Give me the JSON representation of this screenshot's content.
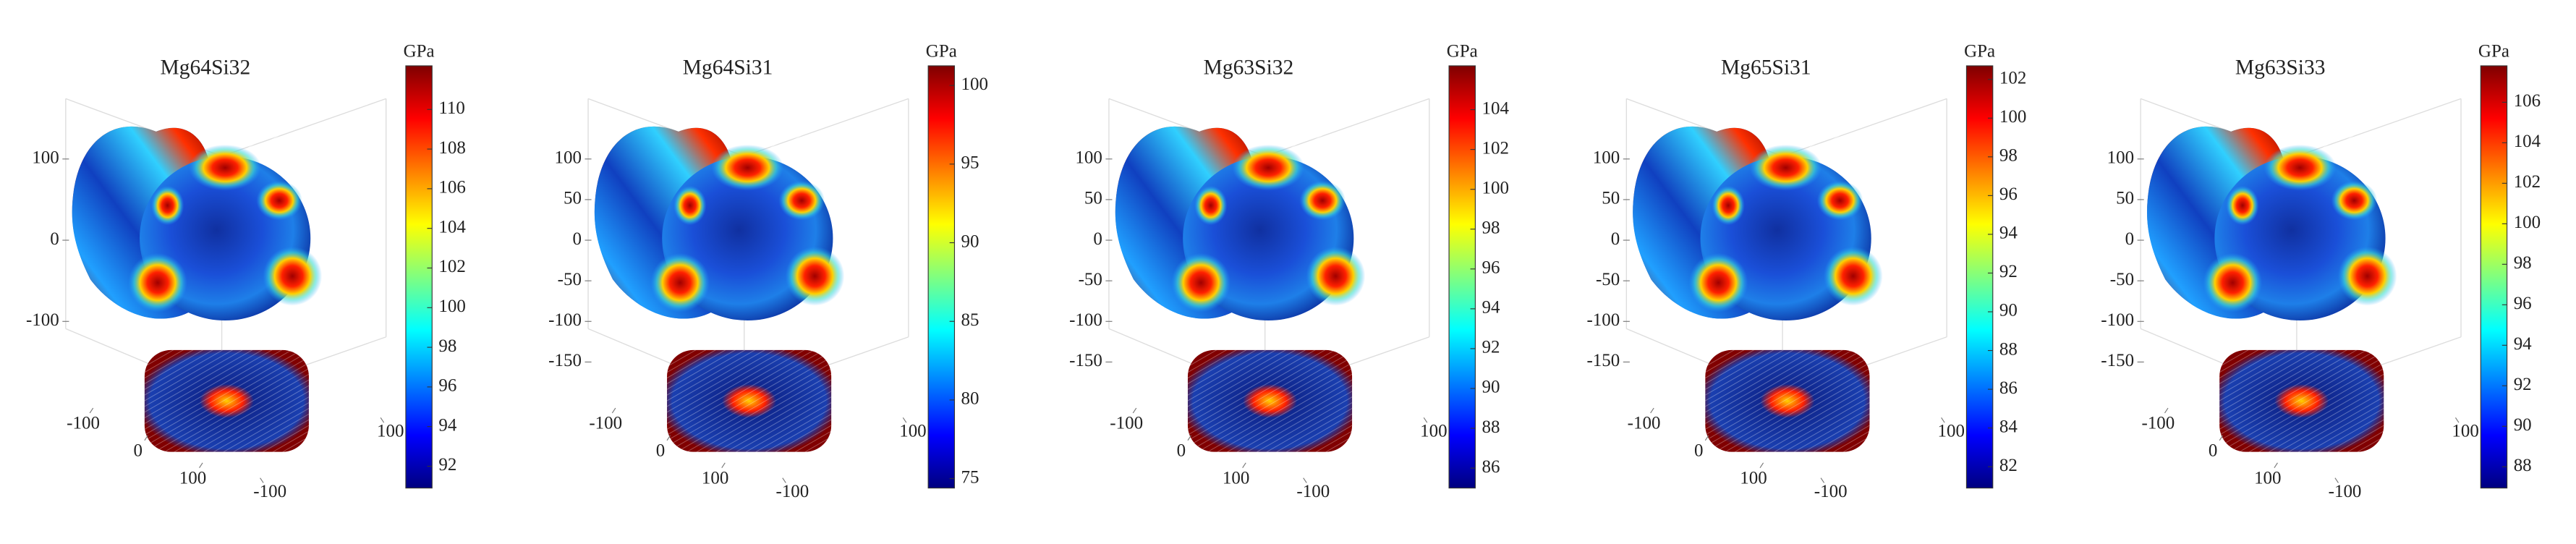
{
  "chart_data": [
    {
      "type": "surface3d",
      "title": "Mg64Si32",
      "colorbar": {
        "label": "GPa",
        "lim": [
          90.9,
          112.2
        ],
        "ticks": [
          92,
          94,
          96,
          98,
          100,
          102,
          104,
          106,
          108,
          110
        ]
      },
      "zlim": [
        -200,
        150
      ],
      "zticks": [
        -100,
        0,
        100
      ],
      "xlim": [
        -150,
        150
      ],
      "xticks": [
        -100,
        0,
        100
      ],
      "ylim": [
        -150,
        150
      ],
      "yticks": [
        -100,
        100
      ]
    },
    {
      "type": "surface3d",
      "title": "Mg64Si31",
      "colorbar": {
        "label": "GPa",
        "lim": [
          74.4,
          101.25
        ],
        "ticks": [
          75,
          80,
          85,
          90,
          95,
          100
        ]
      },
      "zlim": [
        -200,
        150
      ],
      "zticks": [
        -150,
        -100,
        -50,
        0,
        50,
        100
      ],
      "xlim": [
        -150,
        150
      ],
      "xticks": [
        -100,
        0,
        100
      ],
      "ylim": [
        -150,
        150
      ],
      "yticks": [
        -100,
        100
      ]
    },
    {
      "type": "surface3d",
      "title": "Mg63Si32",
      "colorbar": {
        "label": "GPa",
        "lim": [
          85.0,
          106.2
        ],
        "ticks": [
          86,
          88,
          90,
          92,
          94,
          96,
          98,
          100,
          102,
          104
        ]
      },
      "zlim": [
        -200,
        150
      ],
      "zticks": [
        -150,
        -100,
        -50,
        0,
        50,
        100
      ],
      "xlim": [
        -150,
        150
      ],
      "xticks": [
        -100,
        0,
        100
      ],
      "ylim": [
        -150,
        150
      ],
      "yticks": [
        -100,
        100
      ]
    },
    {
      "type": "surface3d",
      "title": "Mg65Si31",
      "colorbar": {
        "label": "GPa",
        "lim": [
          80.9,
          102.7
        ],
        "ticks": [
          82,
          84,
          86,
          88,
          90,
          92,
          94,
          96,
          98,
          100,
          102
        ]
      },
      "zlim": [
        -200,
        150
      ],
      "zticks": [
        -150,
        -100,
        -50,
        0,
        50,
        100
      ],
      "xlim": [
        -150,
        150
      ],
      "xticks": [
        -100,
        0,
        100
      ],
      "ylim": [
        -150,
        150
      ],
      "yticks": [
        -100,
        100
      ]
    },
    {
      "type": "surface3d",
      "title": "Mg63Si33",
      "colorbar": {
        "label": "GPa",
        "lim": [
          86.95,
          107.8
        ],
        "ticks": [
          88,
          90,
          92,
          94,
          96,
          98,
          100,
          102,
          104,
          106
        ]
      },
      "zlim": [
        -200,
        150
      ],
      "zticks": [
        -150,
        -100,
        -50,
        0,
        50,
        100
      ],
      "xlim": [
        -150,
        150
      ],
      "xticks": [
        -100,
        0,
        100
      ],
      "ylim": [
        -150,
        150
      ],
      "yticks": [
        -100,
        100
      ]
    }
  ]
}
